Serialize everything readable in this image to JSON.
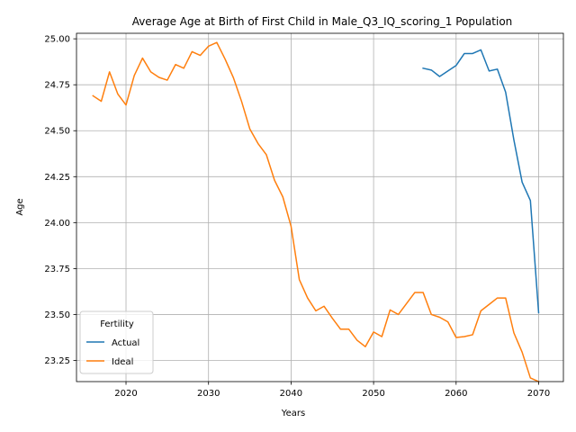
{
  "chart_data": {
    "type": "line",
    "title": "Average Age at Birth of First Child in Male_Q3_IQ_scoring_1 Population",
    "xlabel": "Years",
    "ylabel": "Age",
    "xlim": [
      2014,
      2073
    ],
    "ylim": [
      23.135,
      25.03
    ],
    "xticks": [
      "2020",
      "2030",
      "2040",
      "2050",
      "2060",
      "2070"
    ],
    "yticks": [
      "23.25",
      "23.50",
      "23.75",
      "24.00",
      "24.25",
      "24.50",
      "24.75",
      "25.00"
    ],
    "grid": true,
    "legend": {
      "title": "Fertility",
      "placement": "lower-left",
      "entries": [
        "Actual",
        "Ideal"
      ]
    },
    "series": [
      {
        "name": "Actual",
        "color": "#1f77b4",
        "x": [
          2056,
          2057,
          2058,
          2059,
          2060,
          2061,
          2062,
          2063,
          2064,
          2065,
          2066,
          2067,
          2068,
          2069,
          2070
        ],
        "values": [
          24.84,
          24.83,
          24.795,
          24.825,
          24.855,
          24.92,
          24.92,
          24.94,
          24.825,
          24.835,
          24.71,
          24.45,
          24.22,
          24.12,
          23.51
        ]
      },
      {
        "name": "Ideal",
        "color": "#ff7f0e",
        "x": [
          2016,
          2017,
          2018,
          2019,
          2020,
          2021,
          2022,
          2023,
          2024,
          2025,
          2026,
          2027,
          2028,
          2029,
          2030,
          2031,
          2032,
          2033,
          2034,
          2035,
          2036,
          2037,
          2038,
          2039,
          2040,
          2041,
          2042,
          2043,
          2044,
          2045,
          2046,
          2047,
          2048,
          2049,
          2050,
          2051,
          2052,
          2053,
          2054,
          2055,
          2056,
          2057,
          2058,
          2059,
          2060,
          2061,
          2062,
          2063,
          2064,
          2065,
          2066,
          2067,
          2068,
          2069,
          2070
        ],
        "values": [
          24.69,
          24.66,
          24.82,
          24.7,
          24.64,
          24.8,
          24.895,
          24.82,
          24.79,
          24.775,
          24.86,
          24.84,
          24.93,
          24.91,
          24.96,
          24.98,
          24.89,
          24.79,
          24.66,
          24.51,
          24.43,
          24.37,
          24.23,
          24.14,
          23.98,
          23.69,
          23.59,
          23.52,
          23.545,
          23.48,
          23.42,
          23.42,
          23.36,
          23.325,
          23.405,
          23.38,
          23.525,
          23.5,
          23.56,
          23.62,
          23.62,
          23.5,
          23.485,
          23.46,
          23.375,
          23.38,
          23.39,
          23.52,
          23.555,
          23.59,
          23.59,
          23.4,
          23.295,
          23.155,
          23.135
        ]
      }
    ]
  }
}
